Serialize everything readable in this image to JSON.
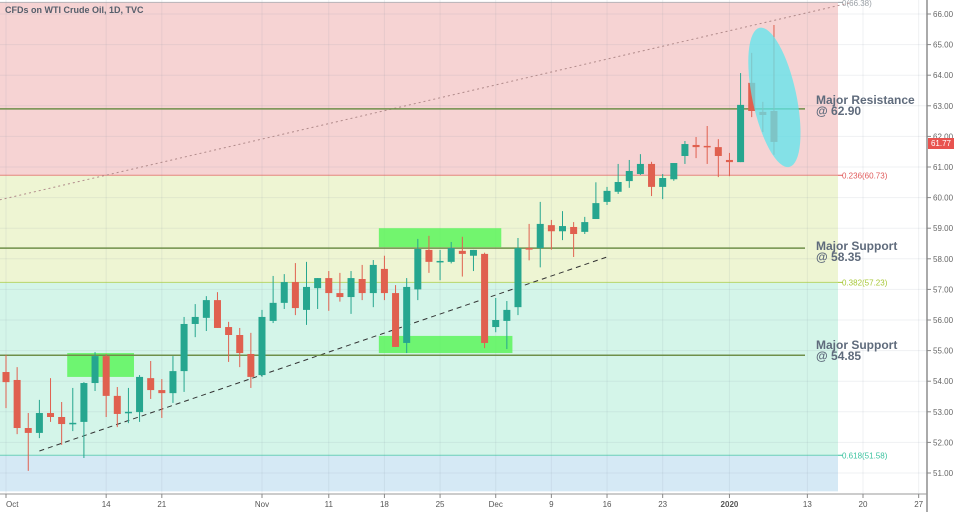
{
  "header": {
    "title": "CFDs on WTI Crude Oil, 1D, TVC"
  },
  "annotations": {
    "resistance": {
      "line1": "Major Resistance",
      "line2": "@ 62.90",
      "price": 62.9
    },
    "support1": {
      "line1": "Major Support",
      "line2": "@ 58.35",
      "price": 58.35
    },
    "support2": {
      "line1": "Major Support",
      "line2": "@ 54.85",
      "price": 54.85
    }
  },
  "last_price": {
    "label": "61.77",
    "value": 61.77,
    "color": "#e8534f"
  },
  "colors": {
    "up": "#26a68f",
    "down": "#e0604f",
    "level_line": "#6f8f4a",
    "zone": "#5cf55c",
    "ellipse": "#5ee6ee"
  },
  "chart_data": {
    "type": "candlestick",
    "title": "CFDs on WTI Crude Oil, 1D, TVC",
    "ylim": [
      50.4,
      66.45
    ],
    "grid": true,
    "y_ticks": [
      "66.00",
      "65.00",
      "64.00",
      "63.00",
      "62.00",
      "61.00",
      "60.00",
      "59.00",
      "58.00",
      "57.00",
      "56.00",
      "55.00",
      "54.00",
      "53.00",
      "52.00",
      "51.00"
    ],
    "x_ticks": [
      {
        "label": "Oct",
        "date": "2019-10-01"
      },
      {
        "label": "14",
        "date": "2019-10-14"
      },
      {
        "label": "21",
        "date": "2019-10-21"
      },
      {
        "label": "Nov",
        "date": "2019-11-01"
      },
      {
        "label": "11",
        "date": "2019-11-11"
      },
      {
        "label": "18",
        "date": "2019-11-18"
      },
      {
        "label": "25",
        "date": "2019-11-25"
      },
      {
        "label": "Dec",
        "date": "2019-12-02"
      },
      {
        "label": "9",
        "date": "2019-12-09"
      },
      {
        "label": "16",
        "date": "2019-12-16"
      },
      {
        "label": "23",
        "date": "2019-12-23"
      },
      {
        "label": "2020",
        "date": "2020-01-02"
      },
      {
        "label": "13",
        "date": "2020-01-13"
      },
      {
        "label": "20",
        "date": "2020-01-20"
      },
      {
        "label": "27",
        "date": "2020-01-27"
      }
    ],
    "fib_levels": [
      {
        "label": "0(66.38)",
        "value": 66.38,
        "color": "#9aa0a6"
      },
      {
        "label": "0.236(60.73)",
        "value": 60.73,
        "color": "#e05a5a"
      },
      {
        "label": "0.382(57.23)",
        "value": 57.23,
        "color": "#a8c838"
      },
      {
        "label": "0.618(51.58)",
        "value": 51.58,
        "color": "#3cc3a0"
      }
    ],
    "fib_bands": [
      {
        "from": 66.38,
        "to": 60.73,
        "color": "#f6d3d3"
      },
      {
        "from": 60.73,
        "to": 57.23,
        "color": "#eef5d3"
      },
      {
        "from": 57.23,
        "to": 51.58,
        "color": "#d4f5e9"
      },
      {
        "from": 51.58,
        "to": 50.4,
        "color": "#d5e9f5"
      }
    ],
    "horizontal_lines": [
      62.9,
      58.35,
      54.85
    ],
    "trendlines": [
      {
        "style": "dashed",
        "color": "#333333",
        "from": {
          "date": "2019-10-04",
          "price": 51.72
        },
        "to": {
          "date": "2019-12-16",
          "price": 58.06
        }
      },
      {
        "style": "dotted",
        "color": "#b08a8a",
        "from": {
          "date": "2019-09-30",
          "price": 59.89
        },
        "to": {
          "date": "2020-01-17",
          "price": 66.38
        }
      }
    ],
    "zones": [
      {
        "from_date": "2019-10-09",
        "to_date": "2019-10-16",
        "high": 54.92,
        "low": 54.14
      },
      {
        "from_date": "2019-11-18",
        "to_date": "2019-12-02",
        "high": 59.0,
        "low": 58.38
      },
      {
        "from_date": "2019-11-18",
        "to_date": "2019-12-03",
        "high": 55.48,
        "low": 54.92
      }
    ],
    "candles_columns": [
      "date",
      "open",
      "high",
      "low",
      "close"
    ],
    "candles": [
      [
        "2019-10-01",
        54.3,
        54.86,
        53.12,
        53.97
      ],
      [
        "2019-10-02",
        54.04,
        54.46,
        52.27,
        52.47
      ],
      [
        "2019-10-03",
        52.47,
        52.96,
        51.07,
        52.31
      ],
      [
        "2019-10-04",
        52.31,
        53.39,
        52.14,
        52.96
      ],
      [
        "2019-10-07",
        52.96,
        54.1,
        52.67,
        52.83
      ],
      [
        "2019-10-08",
        52.83,
        53.32,
        51.92,
        52.6
      ],
      [
        "2019-10-09",
        52.6,
        53.78,
        52.37,
        52.64
      ],
      [
        "2019-10-10",
        52.67,
        53.97,
        51.49,
        53.94
      ],
      [
        "2019-10-11",
        53.94,
        54.95,
        53.68,
        54.82
      ],
      [
        "2019-10-14",
        54.82,
        54.89,
        52.83,
        53.52
      ],
      [
        "2019-10-15",
        53.52,
        53.81,
        52.5,
        52.93
      ],
      [
        "2019-10-16",
        52.96,
        53.78,
        52.63,
        53.0
      ],
      [
        "2019-10-17",
        52.99,
        54.2,
        52.67,
        54.14
      ],
      [
        "2019-10-18",
        54.1,
        54.66,
        53.42,
        53.71
      ],
      [
        "2019-10-21",
        53.71,
        54.07,
        52.8,
        53.61
      ],
      [
        "2019-10-22",
        53.61,
        54.82,
        53.29,
        54.33
      ],
      [
        "2019-10-23",
        54.33,
        56.1,
        53.65,
        55.87
      ],
      [
        "2019-10-24",
        55.87,
        56.52,
        55.44,
        56.1
      ],
      [
        "2019-10-25",
        56.07,
        56.78,
        55.64,
        56.65
      ],
      [
        "2019-10-28",
        56.65,
        56.91,
        55.74,
        55.74
      ],
      [
        "2019-10-29",
        55.77,
        55.94,
        54.63,
        55.51
      ],
      [
        "2019-10-30",
        55.51,
        55.74,
        54.46,
        54.92
      ],
      [
        "2019-10-31",
        54.89,
        55.58,
        53.78,
        54.14
      ],
      [
        "2019-11-01",
        54.2,
        56.33,
        54.14,
        56.1
      ],
      [
        "2019-11-04",
        55.97,
        57.44,
        55.9,
        56.56
      ],
      [
        "2019-11-05",
        56.56,
        57.5,
        56.36,
        57.24
      ],
      [
        "2019-11-06",
        57.24,
        57.86,
        56.16,
        56.39
      ],
      [
        "2019-11-07",
        56.33,
        57.9,
        55.84,
        57.08
      ],
      [
        "2019-11-08",
        57.04,
        57.37,
        56.36,
        57.37
      ],
      [
        "2019-11-11",
        57.37,
        57.6,
        56.3,
        56.88
      ],
      [
        "2019-11-12",
        56.88,
        57.54,
        56.6,
        56.75
      ],
      [
        "2019-11-13",
        56.75,
        57.6,
        56.2,
        57.37
      ],
      [
        "2019-11-14",
        57.34,
        57.8,
        56.65,
        56.88
      ],
      [
        "2019-11-15",
        56.88,
        57.96,
        56.42,
        57.8
      ],
      [
        "2019-11-18",
        57.67,
        58.1,
        56.65,
        56.88
      ],
      [
        "2019-11-19",
        56.88,
        57.14,
        55.12,
        55.12
      ],
      [
        "2019-11-20",
        55.25,
        57.37,
        54.92,
        57.08
      ],
      [
        "2019-11-21",
        57.0,
        58.65,
        56.65,
        58.32
      ],
      [
        "2019-11-22",
        58.29,
        58.75,
        57.54,
        57.9
      ],
      [
        "2019-11-25",
        57.9,
        58.29,
        57.3,
        57.93
      ],
      [
        "2019-11-26",
        57.9,
        58.55,
        57.85,
        58.35
      ],
      [
        "2019-11-27",
        58.26,
        58.72,
        57.42,
        58.16
      ],
      [
        "2019-11-28",
        58.1,
        58.29,
        57.6,
        58.29
      ],
      [
        "2019-11-29",
        58.16,
        58.2,
        55.08,
        55.25
      ],
      [
        "2019-12-02",
        55.77,
        56.72,
        55.6,
        56.0
      ],
      [
        "2019-12-03",
        55.97,
        56.62,
        55.05,
        56.33
      ],
      [
        "2019-12-04",
        56.42,
        58.68,
        56.16,
        58.35
      ],
      [
        "2019-12-05",
        58.35,
        59.14,
        57.95,
        58.32
      ],
      [
        "2019-12-06",
        58.35,
        59.86,
        57.72,
        59.14
      ],
      [
        "2019-12-09",
        59.1,
        59.27,
        58.3,
        58.9
      ],
      [
        "2019-12-10",
        58.9,
        59.56,
        58.61,
        59.07
      ],
      [
        "2019-12-11",
        59.04,
        59.2,
        58.06,
        58.81
      ],
      [
        "2019-12-12",
        58.88,
        59.37,
        58.81,
        59.2
      ],
      [
        "2019-12-13",
        59.3,
        60.5,
        59.3,
        59.82
      ],
      [
        "2019-12-16",
        59.86,
        60.35,
        59.76,
        60.22
      ],
      [
        "2019-12-17",
        60.19,
        61.1,
        60.12,
        60.51
      ],
      [
        "2019-12-18",
        60.54,
        61.23,
        60.32,
        60.87
      ],
      [
        "2019-12-19",
        60.77,
        61.42,
        60.74,
        61.1
      ],
      [
        "2019-12-20",
        61.1,
        61.17,
        60.05,
        60.35
      ],
      [
        "2019-12-23",
        60.35,
        60.77,
        59.95,
        60.64
      ],
      [
        "2019-12-24",
        60.6,
        61.13,
        60.55,
        61.13
      ],
      [
        "2019-12-26",
        61.36,
        61.85,
        61.1,
        61.75
      ],
      [
        "2019-12-27",
        61.72,
        61.98,
        61.29,
        61.65
      ],
      [
        "2019-12-30",
        61.69,
        62.34,
        61.1,
        61.65
      ],
      [
        "2019-12-31",
        61.65,
        61.91,
        60.67,
        61.36
      ],
      [
        "2020-01-02",
        61.23,
        61.46,
        60.7,
        61.16
      ],
      [
        "2020-01-03",
        61.16,
        64.07,
        61.16,
        63.03
      ],
      [
        "2020-01-06",
        63.75,
        64.73,
        62.63,
        62.83
      ],
      [
        "2020-01-07",
        62.8,
        63.13,
        62.14,
        62.7
      ],
      [
        "2020-01-08",
        62.83,
        65.64,
        61.4,
        61.82
      ]
    ],
    "highlight_ellipse": {
      "from_date": "2020-01-06",
      "to_date": "2020-01-09",
      "high": 65.6,
      "low": 60.95
    }
  }
}
